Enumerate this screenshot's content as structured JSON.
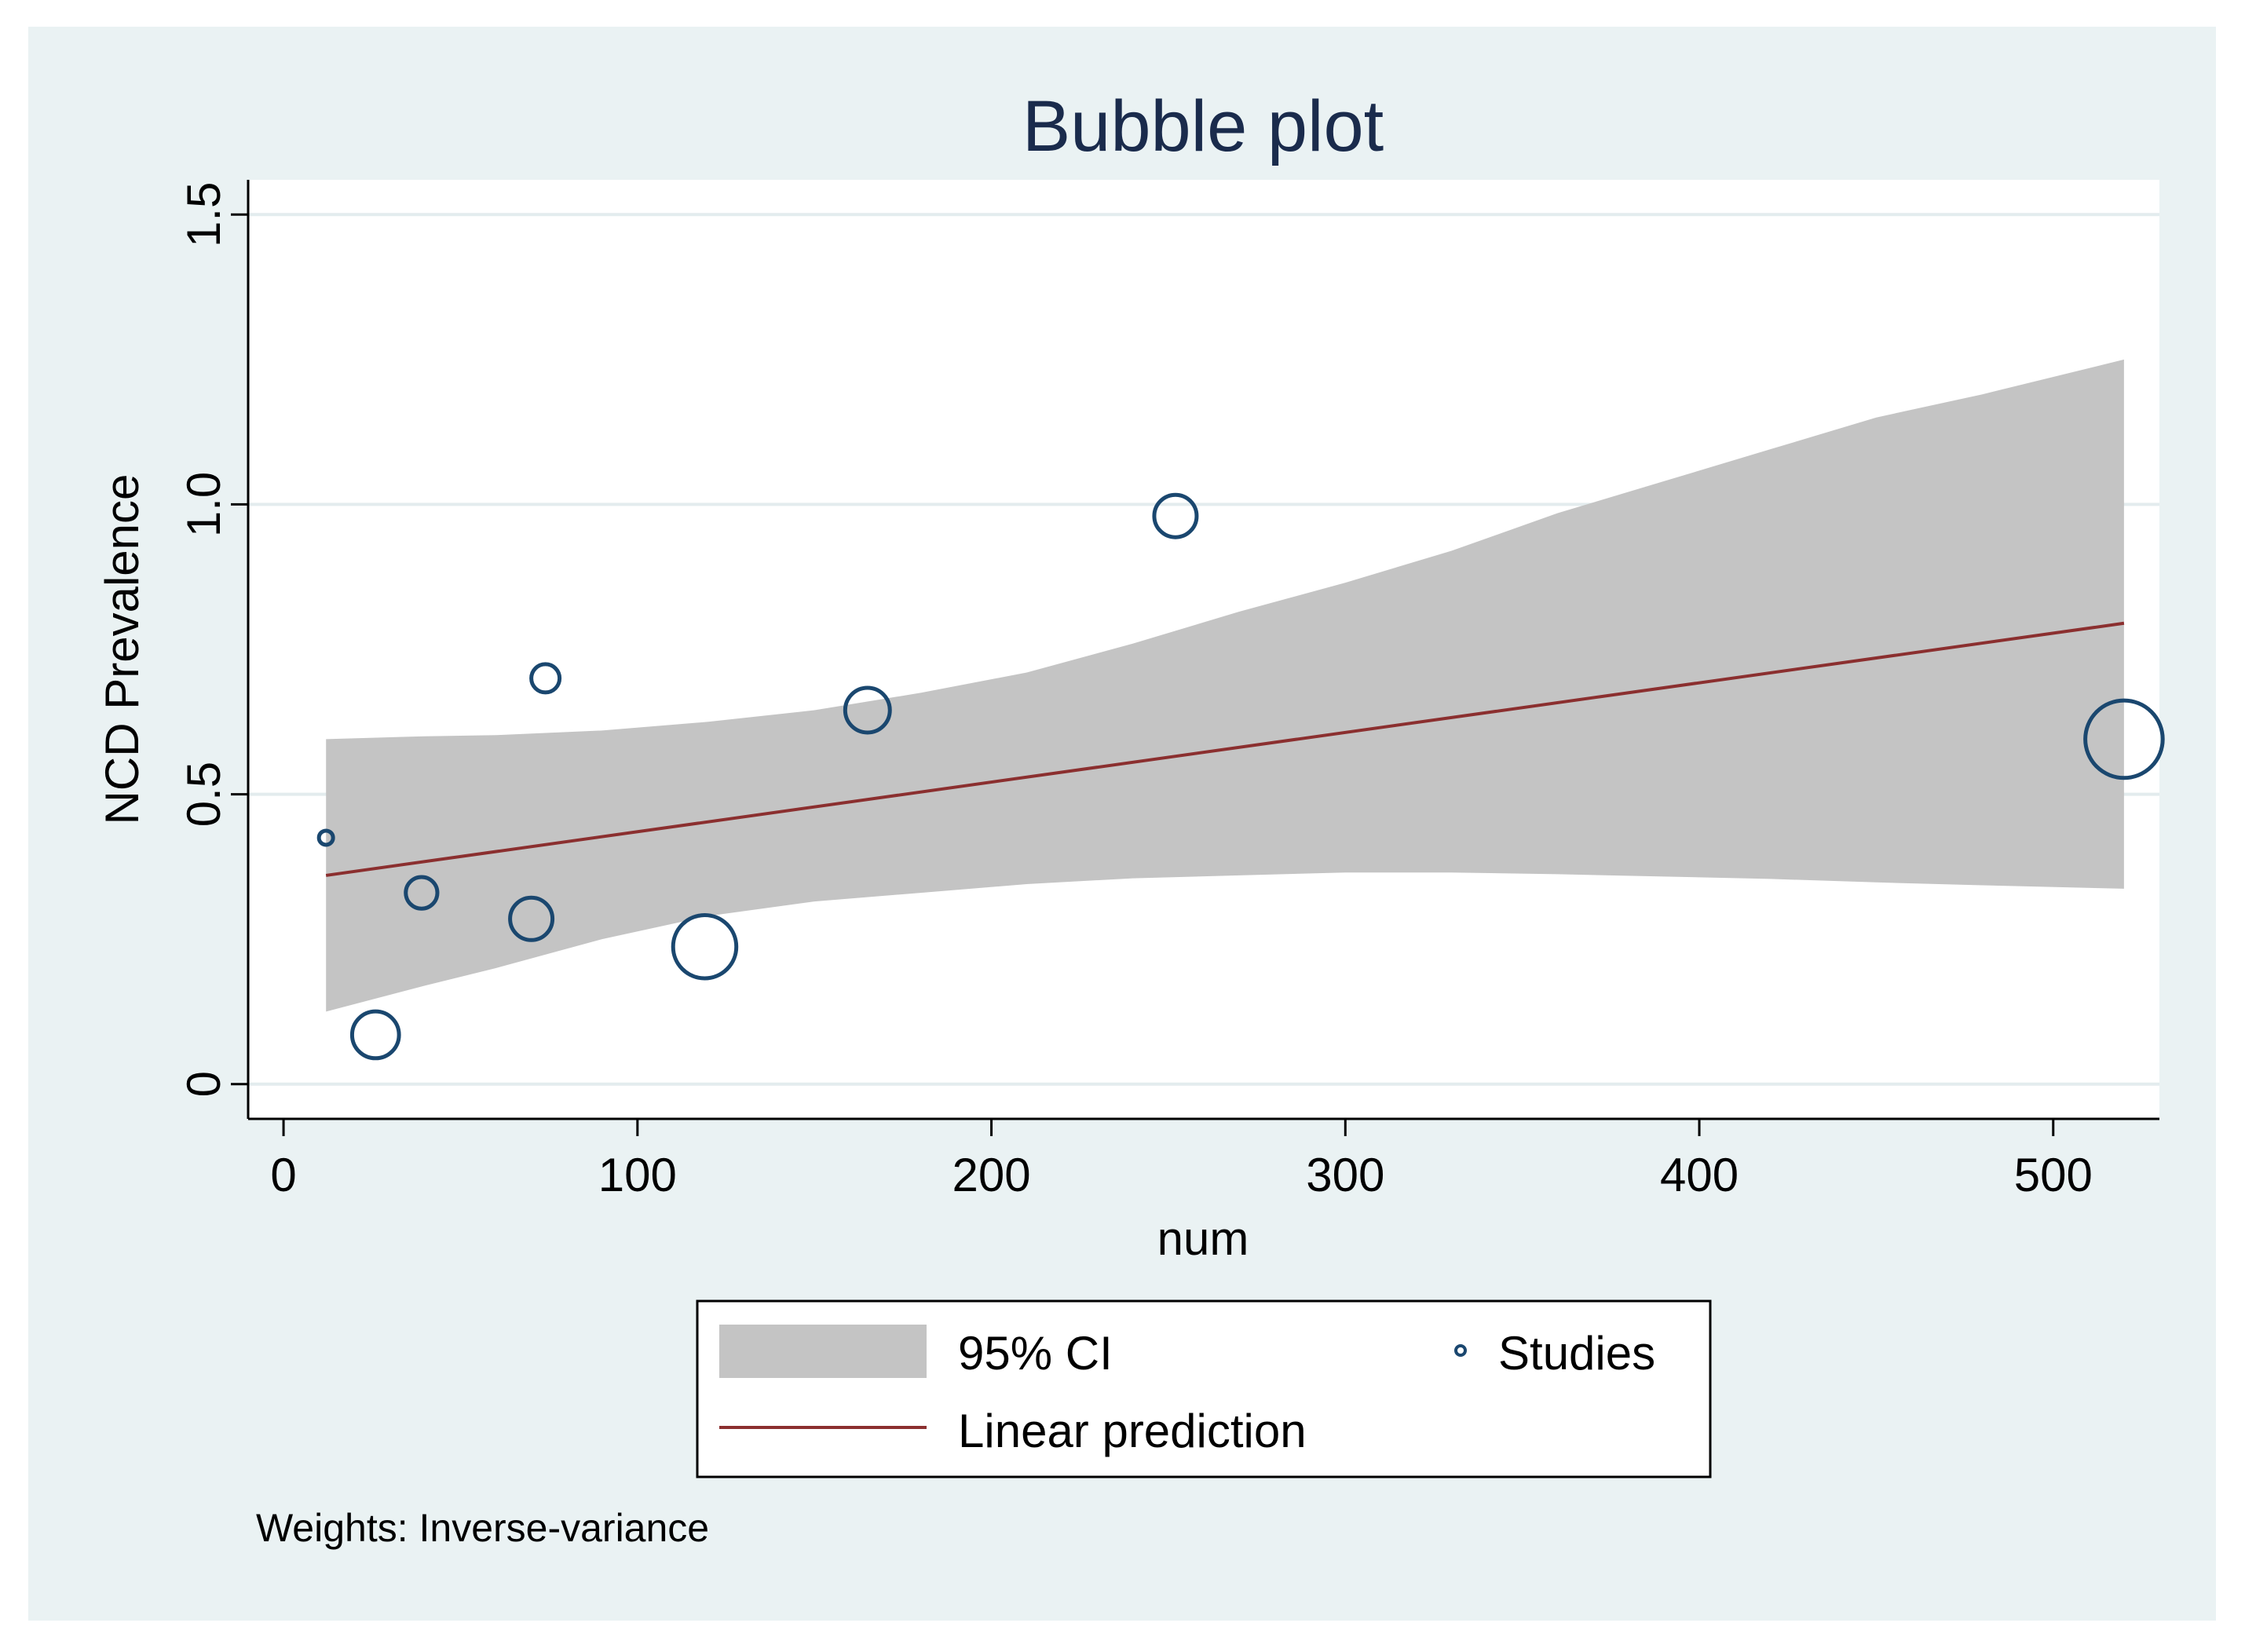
{
  "chart_data": {
    "type": "scatter",
    "title": "Bubble plot",
    "xlabel": "num",
    "ylabel": "NCD Prevalence",
    "xlim": [
      -10,
      530
    ],
    "ylim": [
      -0.06,
      1.56
    ],
    "xticks": [
      0,
      100,
      200,
      300,
      400,
      500
    ],
    "xtick_labels": [
      "0",
      "100",
      "200",
      "300",
      "400",
      "500"
    ],
    "yticks": [
      0,
      0.5,
      1.0,
      1.5
    ],
    "ytick_labels": [
      "0",
      "0.5",
      "1.0",
      "1.5"
    ],
    "grid": true,
    "series": [
      {
        "name": "Studies",
        "kind": "bubble",
        "points": [
          {
            "x": 12,
            "y": 0.425,
            "weight": 1
          },
          {
            "x": 26,
            "y": 0.085,
            "weight": 11
          },
          {
            "x": 39,
            "y": 0.33,
            "weight": 5
          },
          {
            "x": 70,
            "y": 0.285,
            "weight": 9
          },
          {
            "x": 74,
            "y": 0.7,
            "weight": 4
          },
          {
            "x": 119,
            "y": 0.237,
            "weight": 20
          },
          {
            "x": 165,
            "y": 0.645,
            "weight": 10
          },
          {
            "x": 252,
            "y": 0.98,
            "weight": 9
          },
          {
            "x": 520,
            "y": 0.595,
            "weight": 30
          }
        ]
      },
      {
        "name": "Linear prediction",
        "kind": "line",
        "color": "#8b2f2f",
        "points": [
          {
            "x": 12,
            "y": 0.36
          },
          {
            "x": 520,
            "y": 0.795
          }
        ]
      },
      {
        "name": "95% CI",
        "kind": "band",
        "color": "#c4c4c4",
        "x": [
          12,
          40,
          60,
          90,
          120,
          150,
          180,
          210,
          240,
          270,
          300,
          330,
          360,
          390,
          420,
          450,
          480,
          520
        ],
        "lower": [
          0.125,
          0.17,
          0.2,
          0.25,
          0.29,
          0.315,
          0.33,
          0.345,
          0.355,
          0.36,
          0.365,
          0.365,
          0.362,
          0.358,
          0.354,
          0.348,
          0.343,
          0.337
        ],
        "upper": [
          0.595,
          0.6,
          0.602,
          0.61,
          0.625,
          0.645,
          0.675,
          0.71,
          0.76,
          0.815,
          0.865,
          0.92,
          0.985,
          1.04,
          1.095,
          1.15,
          1.19,
          1.25
        ]
      }
    ],
    "legend": {
      "position": "bottom",
      "entries": [
        "95% CI",
        "Studies",
        "Linear prediction"
      ]
    },
    "footnote": "Weights: Inverse-variance"
  },
  "colors": {
    "outer_background": "#eaf2f3",
    "plot_background": "#ffffff",
    "grid": "#e3ecee",
    "marker_stroke": "#1a476f",
    "title": "#1a2b4c",
    "band": "#c4c4c4",
    "line": "#8b2f2f"
  }
}
